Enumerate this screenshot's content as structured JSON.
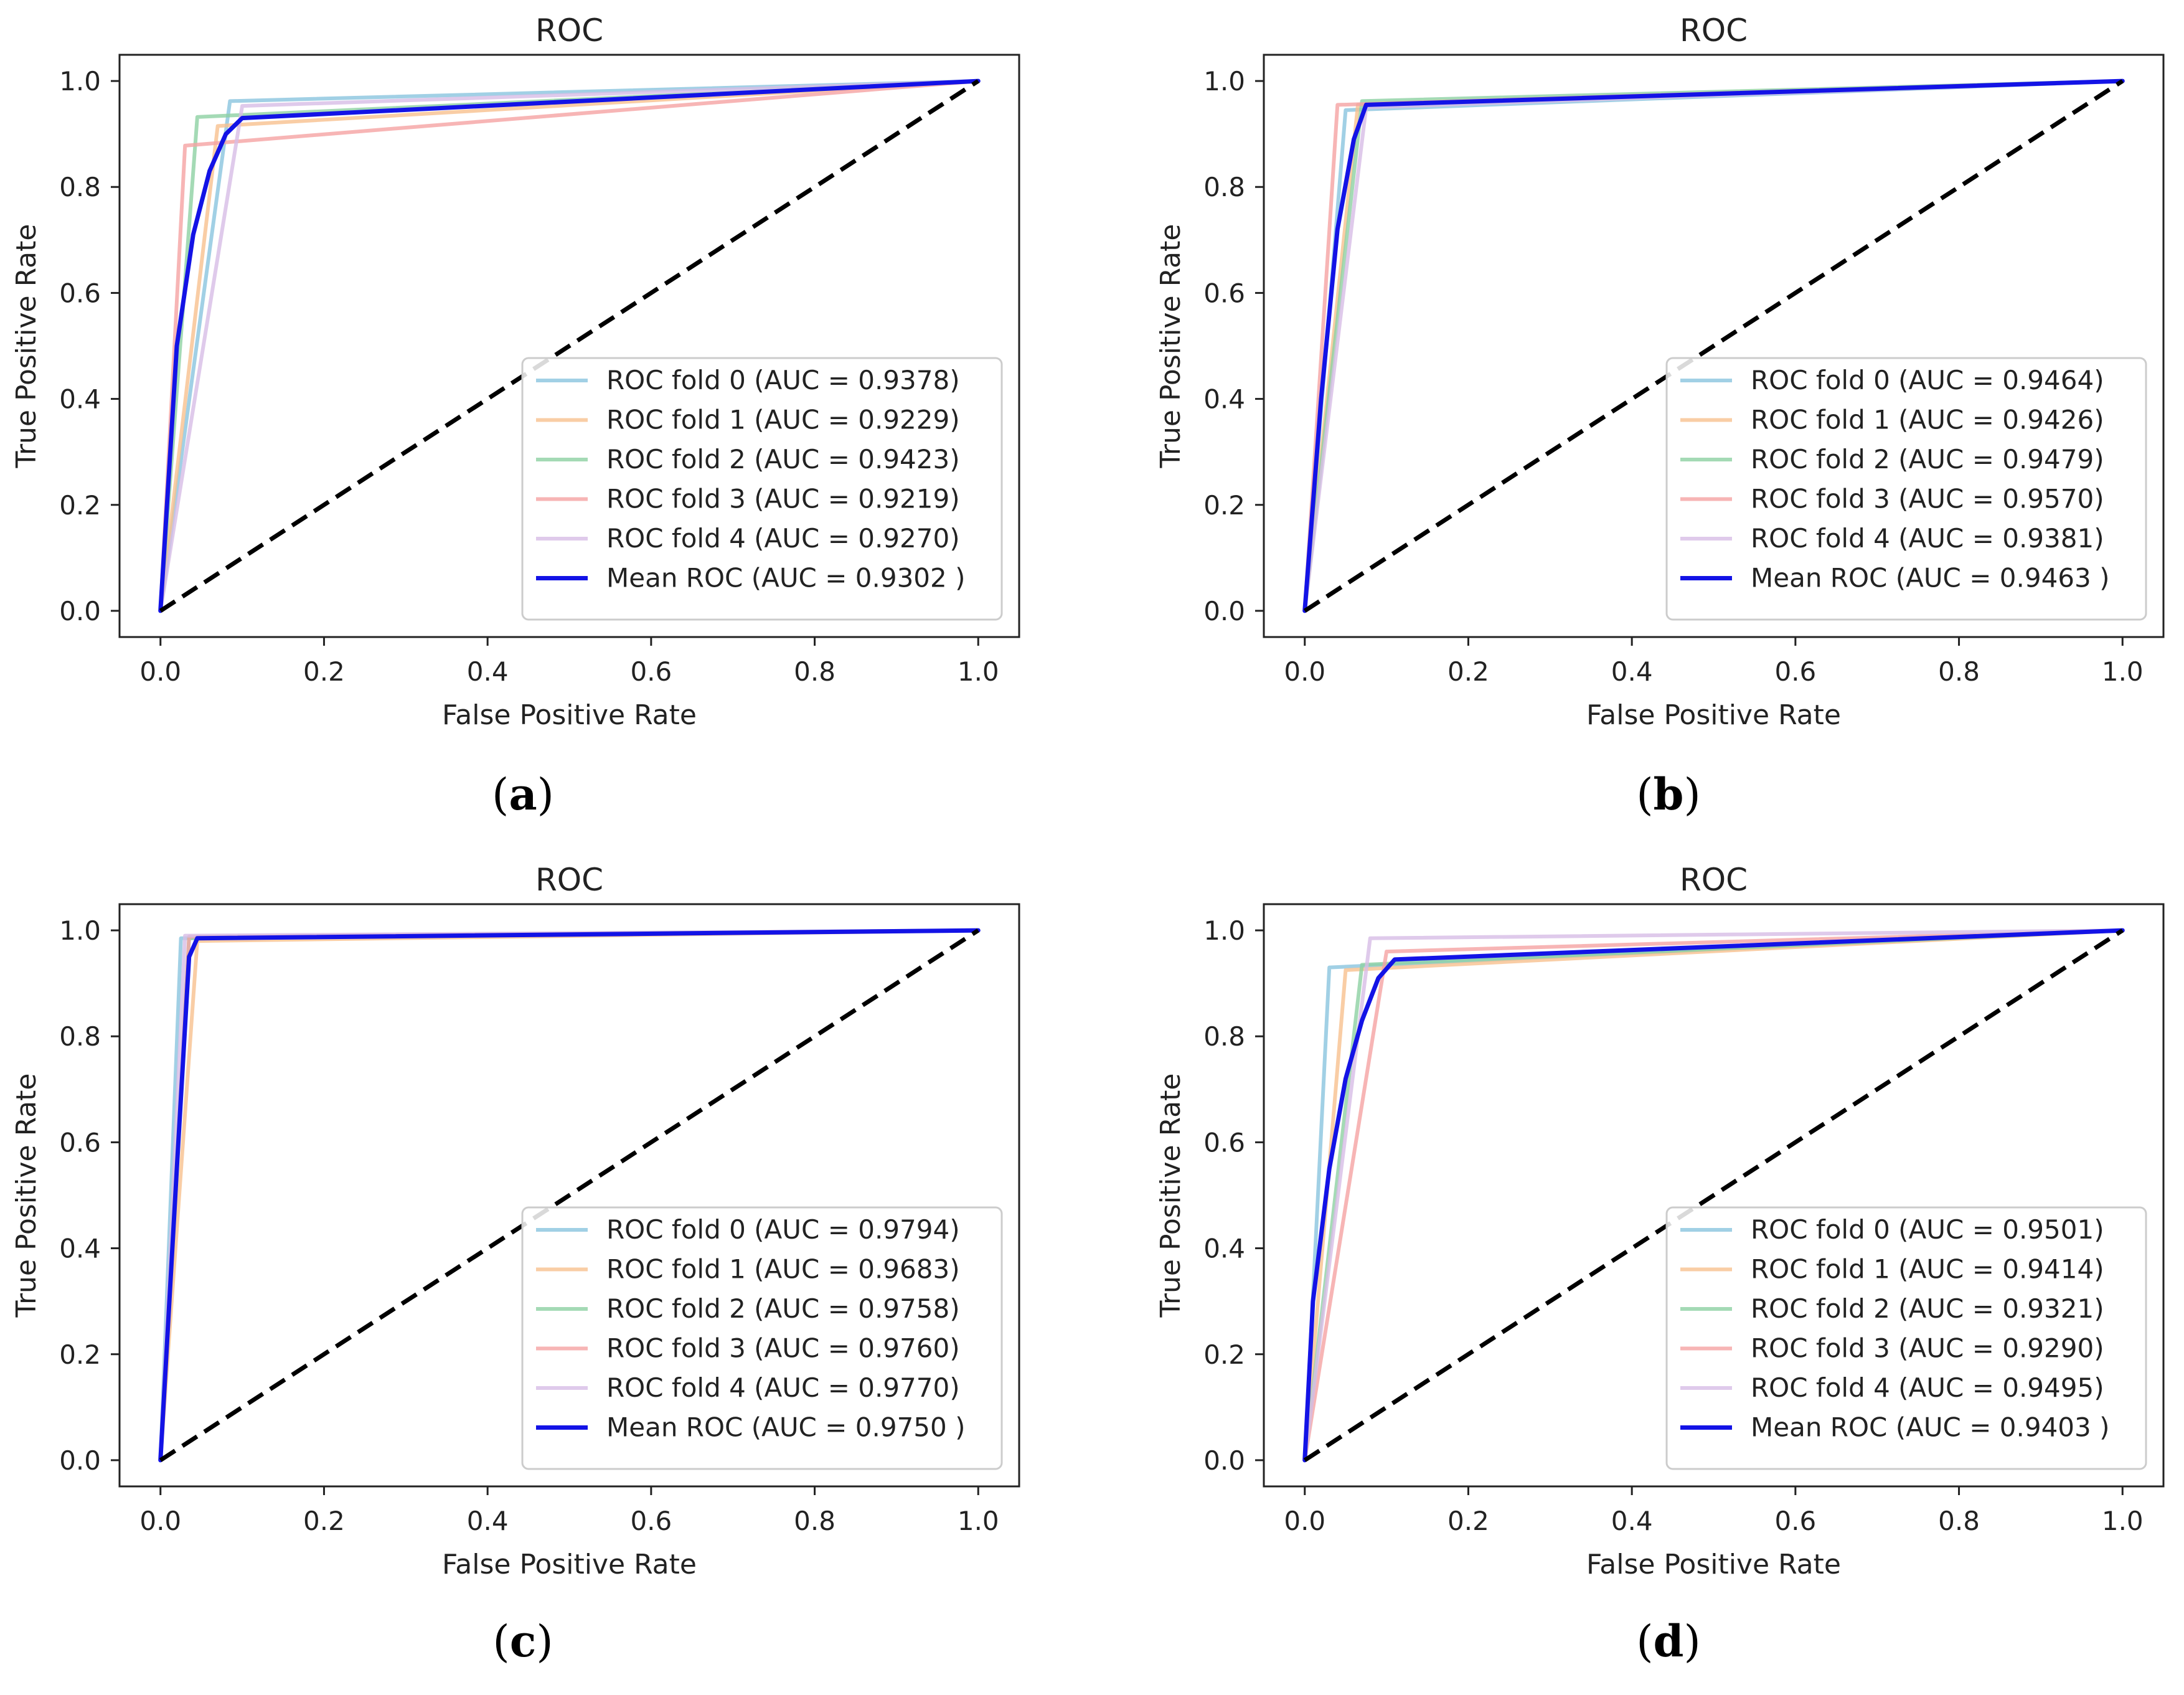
{
  "figure": {
    "panels": [
      {
        "panel_label": "a",
        "caption_open": "(",
        "caption_close": ")"
      },
      {
        "panel_label": "b",
        "caption_open": "(",
        "caption_close": ")"
      },
      {
        "panel_label": "c",
        "caption_open": "(",
        "caption_close": ")"
      },
      {
        "panel_label": "d",
        "caption_open": "(",
        "caption_close": ")"
      }
    ]
  },
  "colors": {
    "fold0": "#89c4df",
    "fold1": "#f7c08e",
    "fold2": "#8dd1a3",
    "fold3": "#f5a3a3",
    "fold4": "#d7bde6",
    "mean": "#1313e6",
    "chance": "#000000"
  },
  "chart_data": [
    {
      "type": "line",
      "title": "ROC",
      "xlabel": "False Positive Rate",
      "ylabel": "True Positive Rate",
      "xlim": [
        0,
        1
      ],
      "ylim": [
        0,
        1
      ],
      "xticks": [
        "0.0",
        "0.2",
        "0.4",
        "0.6",
        "0.8",
        "1.0"
      ],
      "yticks": [
        "0.0",
        "0.2",
        "0.4",
        "0.6",
        "0.8",
        "1.0"
      ],
      "legend_position": "lower-right",
      "series": [
        {
          "name": "ROC fold 0 (AUC = 0.9378)",
          "x": [
            0,
            0.085,
            1
          ],
          "y": [
            0,
            0.962,
            1
          ]
        },
        {
          "name": "ROC fold 1 (AUC = 0.9229)",
          "x": [
            0,
            0.07,
            1
          ],
          "y": [
            0,
            0.915,
            1
          ]
        },
        {
          "name": "ROC fold 2 (AUC = 0.9423)",
          "x": [
            0,
            0.045,
            1
          ],
          "y": [
            0,
            0.932,
            1
          ]
        },
        {
          "name": "ROC fold 3 (AUC = 0.9219)",
          "x": [
            0,
            0.03,
            1
          ],
          "y": [
            0,
            0.878,
            1
          ]
        },
        {
          "name": "ROC fold 4 (AUC = 0.9270)",
          "x": [
            0,
            0.1,
            1
          ],
          "y": [
            0,
            0.953,
            1
          ]
        },
        {
          "name": "Mean ROC (AUC = 0.9302 )",
          "x": [
            0,
            0.02,
            0.04,
            0.06,
            0.08,
            0.1,
            1
          ],
          "y": [
            0,
            0.5,
            0.71,
            0.83,
            0.9,
            0.93,
            1
          ]
        }
      ],
      "chance_line": {
        "x": [
          0,
          1
        ],
        "y": [
          0,
          1
        ]
      }
    },
    {
      "type": "line",
      "title": "ROC",
      "xlabel": "False Positive Rate",
      "ylabel": "True Positive Rate",
      "xlim": [
        0,
        1
      ],
      "ylim": [
        0,
        1
      ],
      "xticks": [
        "0.0",
        "0.2",
        "0.4",
        "0.6",
        "0.8",
        "1.0"
      ],
      "yticks": [
        "0.0",
        "0.2",
        "0.4",
        "0.6",
        "0.8",
        "1.0"
      ],
      "legend_position": "lower-right",
      "series": [
        {
          "name": "ROC fold 0 (AUC = 0.9464)",
          "x": [
            0,
            0.05,
            1
          ],
          "y": [
            0,
            0.945,
            1
          ]
        },
        {
          "name": "ROC fold 1 (AUC = 0.9426)",
          "x": [
            0,
            0.065,
            1
          ],
          "y": [
            0,
            0.955,
            1
          ]
        },
        {
          "name": "ROC fold 2 (AUC = 0.9479)",
          "x": [
            0,
            0.07,
            1
          ],
          "y": [
            0,
            0.962,
            1
          ]
        },
        {
          "name": "ROC fold 3 (AUC = 0.9570)",
          "x": [
            0,
            0.04,
            1
          ],
          "y": [
            0,
            0.955,
            1
          ]
        },
        {
          "name": "ROC fold 4 (AUC = 0.9381)",
          "x": [
            0,
            0.075,
            1
          ],
          "y": [
            0,
            0.95,
            1
          ]
        },
        {
          "name": "Mean ROC (AUC = 0.9463 )",
          "x": [
            0,
            0.02,
            0.04,
            0.06,
            0.075,
            1
          ],
          "y": [
            0,
            0.4,
            0.72,
            0.89,
            0.955,
            1
          ]
        }
      ],
      "chance_line": {
        "x": [
          0,
          1
        ],
        "y": [
          0,
          1
        ]
      }
    },
    {
      "type": "line",
      "title": "ROC",
      "xlabel": "False Positive Rate",
      "ylabel": "True Positive Rate",
      "xlim": [
        0,
        1
      ],
      "ylim": [
        0,
        1
      ],
      "xticks": [
        "0.0",
        "0.2",
        "0.4",
        "0.6",
        "0.8",
        "1.0"
      ],
      "yticks": [
        "0.0",
        "0.2",
        "0.4",
        "0.6",
        "0.8",
        "1.0"
      ],
      "legend_position": "lower-right",
      "series": [
        {
          "name": "ROC fold 0 (AUC = 0.9794)",
          "x": [
            0,
            0.025,
            1
          ],
          "y": [
            0,
            0.985,
            1
          ]
        },
        {
          "name": "ROC fold 1 (AUC = 0.9683)",
          "x": [
            0,
            0.045,
            1
          ],
          "y": [
            0,
            0.98,
            1
          ]
        },
        {
          "name": "ROC fold 2 (AUC = 0.9758)",
          "x": [
            0,
            0.035,
            1
          ],
          "y": [
            0,
            0.985,
            1
          ]
        },
        {
          "name": "ROC fold 3 (AUC = 0.9760)",
          "x": [
            0,
            0.035,
            1
          ],
          "y": [
            0,
            0.988,
            1
          ]
        },
        {
          "name": "ROC fold 4 (AUC = 0.9770)",
          "x": [
            0,
            0.03,
            1
          ],
          "y": [
            0,
            0.99,
            1
          ]
        },
        {
          "name": "Mean ROC (AUC = 0.9750 )",
          "x": [
            0,
            0.02,
            0.035,
            0.045,
            1
          ],
          "y": [
            0,
            0.55,
            0.95,
            0.985,
            1
          ]
        }
      ],
      "chance_line": {
        "x": [
          0,
          1
        ],
        "y": [
          0,
          1
        ]
      }
    },
    {
      "type": "line",
      "title": "ROC",
      "xlabel": "False Positive Rate",
      "ylabel": "True Positive Rate",
      "xlim": [
        0,
        1
      ],
      "ylim": [
        0,
        1
      ],
      "xticks": [
        "0.0",
        "0.2",
        "0.4",
        "0.6",
        "0.8",
        "1.0"
      ],
      "yticks": [
        "0.0",
        "0.2",
        "0.4",
        "0.6",
        "0.8",
        "1.0"
      ],
      "legend_position": "lower-right",
      "series": [
        {
          "name": "ROC fold 0 (AUC = 0.9501)",
          "x": [
            0,
            0.03,
            1
          ],
          "y": [
            0,
            0.93,
            1
          ]
        },
        {
          "name": "ROC fold 1 (AUC = 0.9414)",
          "x": [
            0,
            0.05,
            1
          ],
          "y": [
            0,
            0.925,
            1
          ]
        },
        {
          "name": "ROC fold 2 (AUC = 0.9321)",
          "x": [
            0,
            0.07,
            1
          ],
          "y": [
            0,
            0.935,
            1
          ]
        },
        {
          "name": "ROC fold 3 (AUC = 0.9290)",
          "x": [
            0,
            0.1,
            1
          ],
          "y": [
            0,
            0.96,
            1
          ]
        },
        {
          "name": "ROC fold 4 (AUC = 0.9495)",
          "x": [
            0,
            0.08,
            1
          ],
          "y": [
            0,
            0.985,
            1
          ]
        },
        {
          "name": "Mean ROC (AUC = 0.9403 )",
          "x": [
            0,
            0.01,
            0.03,
            0.05,
            0.07,
            0.09,
            0.11,
            1
          ],
          "y": [
            0,
            0.3,
            0.55,
            0.72,
            0.83,
            0.91,
            0.945,
            1
          ]
        }
      ],
      "chance_line": {
        "x": [
          0,
          1
        ],
        "y": [
          0,
          1
        ]
      }
    }
  ]
}
